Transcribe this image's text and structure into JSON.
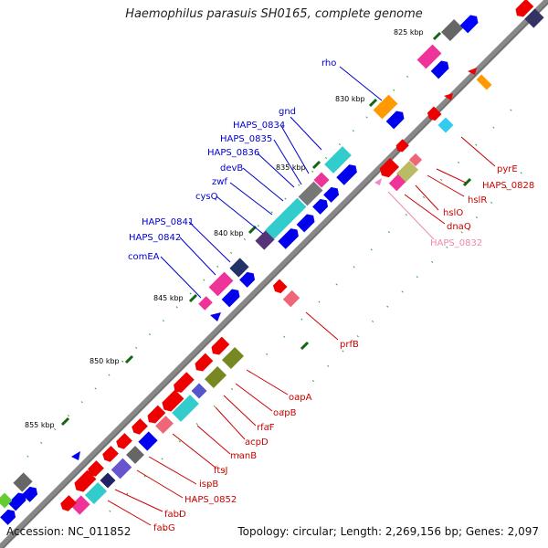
{
  "map": {
    "title": "Haemophilus parasuis SH0165, complete genome",
    "accession": "Accession: NC_011852",
    "summary": "Topology: circular; Length: 2,269,156 bp; Genes: 2,097"
  },
  "ticks": [
    "825 kbp",
    "830 kbp",
    "835 kbp",
    "840 kbp",
    "845 kbp",
    "850 kbp",
    "855 kbp"
  ],
  "labels": {
    "outer": [
      "rho",
      "gnd",
      "HAPS_0834",
      "HAPS_0835",
      "HAPS_0836",
      "devB",
      "zwf",
      "cysQ",
      "HAPS_0841",
      "HAPS_0842",
      "comEA"
    ],
    "inner": [
      "pyrE",
      "HAPS_0828",
      "hslR",
      "hslO",
      "dnaQ",
      "HAPS_0832",
      "prfB",
      "oapA",
      "oapB",
      "rfaF",
      "acpD",
      "manB",
      "ftsJ",
      "ispB",
      "HAPS_0852",
      "fabD",
      "fabG"
    ]
  },
  "colors": {
    "blue_label": "#0000cc",
    "red_label": "#cc0000",
    "pink_label": "#ee88aa",
    "backbone": "#888888",
    "dots": "#22aa22"
  }
}
